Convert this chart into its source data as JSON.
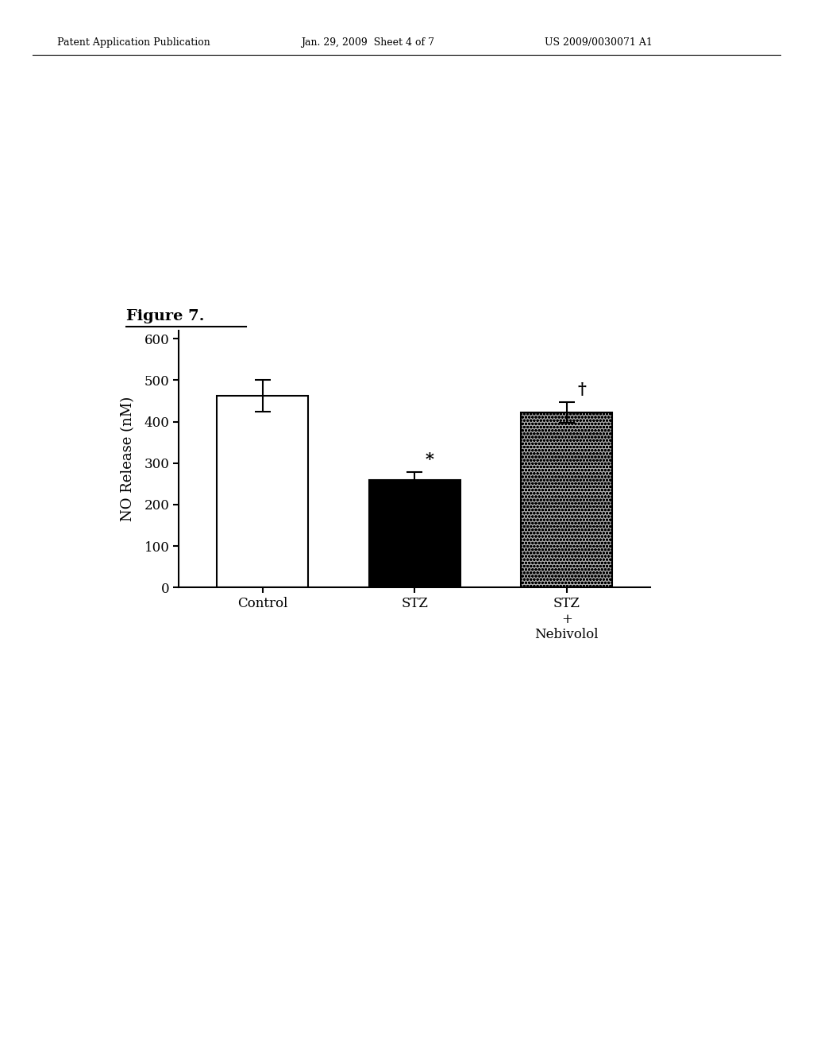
{
  "title": "Figure 7.",
  "ylabel": "NO Release (nM)",
  "categories": [
    "Control",
    "STZ",
    "STZ\n+\nNebivolol"
  ],
  "values": [
    462,
    260,
    422
  ],
  "errors": [
    38,
    18,
    25
  ],
  "bar_colors": [
    "white",
    "black",
    "#888888"
  ],
  "bar_edge_colors": [
    "black",
    "black",
    "black"
  ],
  "ylim": [
    0,
    620
  ],
  "yticks": [
    0,
    100,
    200,
    300,
    400,
    500,
    600
  ],
  "annotations": [
    "",
    "*",
    "†"
  ],
  "header_left": "Patent Application Publication",
  "header_mid": "Jan. 29, 2009  Sheet 4 of 7",
  "header_right": "US 2009/0030071 A1",
  "figure_width": 10.24,
  "figure_height": 13.2,
  "dpi": 100
}
